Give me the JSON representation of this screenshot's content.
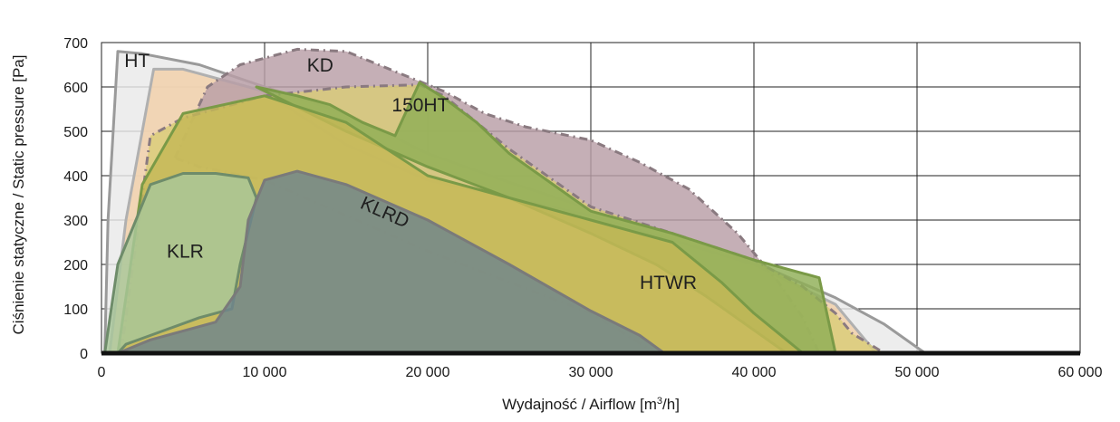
{
  "chart_data": {
    "type": "area",
    "xlabel": "Wydajność / Airflow [m",
    "xlabel_sup": "3",
    "xlabel_tail": "/h]",
    "ylabel": "Ciśnienie statyczne / Static pressure [Pa]",
    "xlim": [
      0,
      60000
    ],
    "ylim": [
      0,
      700
    ],
    "x_ticks": [
      0,
      10000,
      20000,
      30000,
      40000,
      50000,
      60000
    ],
    "x_tick_labels": [
      "0",
      "10 000",
      "20 000",
      "30 000",
      "40 000",
      "50 000",
      "60 000"
    ],
    "y_ticks": [
      0,
      100,
      200,
      300,
      400,
      500,
      600,
      700
    ],
    "y_tick_labels": [
      "0",
      "100",
      "200",
      "300",
      "400",
      "500",
      "600",
      "700"
    ],
    "grid": true,
    "series": [
      {
        "name": "HT",
        "fill": "#e9e9e9",
        "stroke": "#9a9a9a",
        "dash": false,
        "label_at": [
          1400,
          645
        ],
        "label_rotate": 0,
        "points": [
          [
            200,
            0
          ],
          [
            400,
            300
          ],
          [
            1000,
            680
          ],
          [
            2500,
            675
          ],
          [
            6000,
            650
          ],
          [
            10000,
            600
          ],
          [
            15000,
            540
          ],
          [
            20000,
            450
          ],
          [
            25000,
            385
          ],
          [
            30000,
            325
          ],
          [
            35000,
            270
          ],
          [
            40000,
            205
          ],
          [
            45000,
            125
          ],
          [
            48000,
            65
          ],
          [
            50500,
            0
          ]
        ]
      },
      {
        "name": "",
        "fill": "#f2cfa8",
        "stroke": "#b0b0b0",
        "dash": false,
        "points": [
          [
            500,
            0
          ],
          [
            1500,
            300
          ],
          [
            3200,
            640
          ],
          [
            5000,
            640
          ],
          [
            8000,
            610
          ],
          [
            10000,
            590
          ],
          [
            12000,
            540
          ],
          [
            15000,
            470
          ],
          [
            20000,
            390
          ],
          [
            30000,
            310
          ],
          [
            40000,
            200
          ],
          [
            45000,
            110
          ],
          [
            47500,
            0
          ]
        ]
      },
      {
        "name": "KD",
        "fill": "#b89ea6",
        "stroke": "#8a7a80",
        "dash": true,
        "label_at": [
          12600,
          635
        ],
        "label_rotate": 0,
        "points": [
          [
            4500,
            440
          ],
          [
            6500,
            600
          ],
          [
            8500,
            650
          ],
          [
            12000,
            685
          ],
          [
            15000,
            680
          ],
          [
            18000,
            635
          ],
          [
            21000,
            590
          ],
          [
            23500,
            540
          ],
          [
            26000,
            510
          ],
          [
            30000,
            480
          ],
          [
            33000,
            430
          ],
          [
            36000,
            370
          ],
          [
            39000,
            270
          ],
          [
            41500,
            160
          ],
          [
            43000,
            80
          ],
          [
            44000,
            0
          ],
          [
            34000,
            0
          ],
          [
            30000,
            90
          ],
          [
            20000,
            230
          ],
          [
            10000,
            390
          ],
          [
            6000,
            420
          ]
        ]
      },
      {
        "name": "",
        "fill": "#d9cc77",
        "stroke": "#8a7a80",
        "dash": true,
        "points": [
          [
            1200,
            0
          ],
          [
            3000,
            490
          ],
          [
            5000,
            530
          ],
          [
            10000,
            580
          ],
          [
            15000,
            600
          ],
          [
            19500,
            605
          ],
          [
            21000,
            580
          ],
          [
            25000,
            460
          ],
          [
            30000,
            330
          ],
          [
            35000,
            270
          ],
          [
            40000,
            210
          ],
          [
            43000,
            150
          ],
          [
            45000,
            90
          ],
          [
            46000,
            45
          ],
          [
            48000,
            0
          ]
        ]
      },
      {
        "name": "150HT",
        "fill": "#8fae55",
        "stroke": "#7a9a47",
        "dash": false,
        "label_at": [
          17800,
          545
        ],
        "label_rotate": 0,
        "points": [
          [
            9500,
            600
          ],
          [
            12000,
            580
          ],
          [
            14000,
            560
          ],
          [
            16000,
            520
          ],
          [
            18000,
            490
          ],
          [
            19500,
            610
          ],
          [
            21000,
            575
          ],
          [
            23000,
            520
          ],
          [
            25000,
            450
          ],
          [
            30000,
            320
          ],
          [
            35000,
            270
          ],
          [
            40000,
            210
          ],
          [
            44000,
            170
          ],
          [
            45000,
            0
          ],
          [
            42000,
            0
          ],
          [
            37000,
            130
          ],
          [
            34000,
            200
          ],
          [
            30000,
            270
          ],
          [
            25000,
            350
          ],
          [
            20000,
            420
          ],
          [
            15000,
            500
          ]
        ]
      },
      {
        "name": "HTWR",
        "fill": "#c4b855",
        "stroke": "#7a9a47",
        "dash": false,
        "label_at": [
          33000,
          145
        ],
        "label_rotate": 0,
        "points": [
          [
            1000,
            0
          ],
          [
            2500,
            380
          ],
          [
            5000,
            540
          ],
          [
            10000,
            580
          ],
          [
            15000,
            520
          ],
          [
            20000,
            400
          ],
          [
            25000,
            350
          ],
          [
            30000,
            300
          ],
          [
            35000,
            250
          ],
          [
            38000,
            160
          ],
          [
            40000,
            90
          ],
          [
            42000,
            30
          ],
          [
            43000,
            0
          ]
        ]
      },
      {
        "name": "KLR",
        "fill": "#a8c79a",
        "stroke": "#6e8c6a",
        "dash": false,
        "label_at": [
          4000,
          215
        ],
        "label_rotate": 0,
        "points": [
          [
            200,
            0
          ],
          [
            1000,
            200
          ],
          [
            3000,
            380
          ],
          [
            5000,
            405
          ],
          [
            7000,
            405
          ],
          [
            9000,
            395
          ],
          [
            9500,
            350
          ],
          [
            8500,
            200
          ],
          [
            8000,
            100
          ],
          [
            6000,
            80
          ],
          [
            3000,
            40
          ],
          [
            1500,
            20
          ],
          [
            1000,
            0
          ]
        ]
      },
      {
        "name": "KLRD",
        "fill": "#6f858c",
        "stroke": "#7a7a7a",
        "dash": false,
        "label_at": [
          15800,
          328
        ],
        "label_rotate": 24,
        "points": [
          [
            1000,
            0
          ],
          [
            3000,
            30
          ],
          [
            7000,
            70
          ],
          [
            8500,
            150
          ],
          [
            9000,
            300
          ],
          [
            10000,
            390
          ],
          [
            12000,
            410
          ],
          [
            15000,
            380
          ],
          [
            20000,
            300
          ],
          [
            25000,
            200
          ],
          [
            30000,
            95
          ],
          [
            33000,
            40
          ],
          [
            34500,
            0
          ]
        ]
      }
    ]
  }
}
